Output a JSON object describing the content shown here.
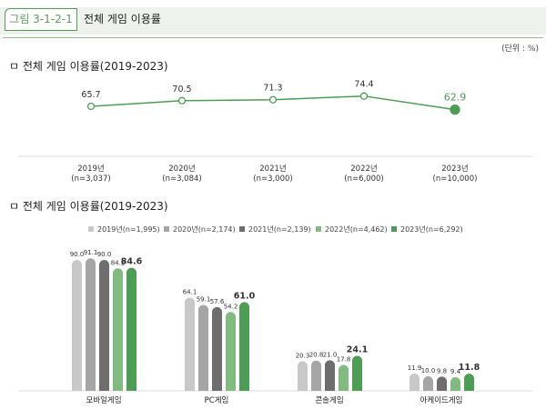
{
  "header": {
    "figure_label": "그림 3-1-2-1",
    "title": "전체 게임 이용률"
  },
  "unit": "(단위 : %)",
  "chart_data": [
    {
      "type": "line",
      "title": "ㅁ 전체 게임 이용률(2019-2023)",
      "categories": [
        "2019년",
        "2020년",
        "2021년",
        "2022년",
        "2023년"
      ],
      "sublabels": [
        "(n=3,037)",
        "(n=3,084)",
        "(n=3,000)",
        "(n=6,000)",
        "(n=10,000)"
      ],
      "values": [
        65.7,
        70.5,
        71.3,
        74.4,
        62.9
      ],
      "colors": {
        "line": "#4c9e55",
        "highlight": "#4c9e55"
      }
    },
    {
      "type": "bar",
      "title": "ㅁ 전체 게임 이용률(2019-2023)",
      "legend_position": "top",
      "categories": [
        "모바일게임",
        "PC게임",
        "콘솔게임",
        "아케이드게임"
      ],
      "series": [
        {
          "name": "2019년(n=1,995)",
          "color": "#c8c8c8",
          "values": [
            90.0,
            64.1,
            20.3,
            11.9
          ]
        },
        {
          "name": "2020년(n=2,174)",
          "color": "#a5a5a5",
          "values": [
            91.1,
            59.1,
            20.8,
            10.0
          ]
        },
        {
          "name": "2021년(n=2,139)",
          "color": "#6e6e6e",
          "values": [
            90.0,
            57.6,
            21.0,
            9.8
          ]
        },
        {
          "name": "2022년(n=4,462)",
          "color": "#82bb80",
          "values": [
            84.2,
            54.2,
            17.8,
            9.4
          ]
        },
        {
          "name": "2023년(n=6,292)",
          "color": "#4c9e55",
          "values": [
            84.6,
            61.0,
            24.1,
            11.8
          ]
        }
      ]
    }
  ]
}
